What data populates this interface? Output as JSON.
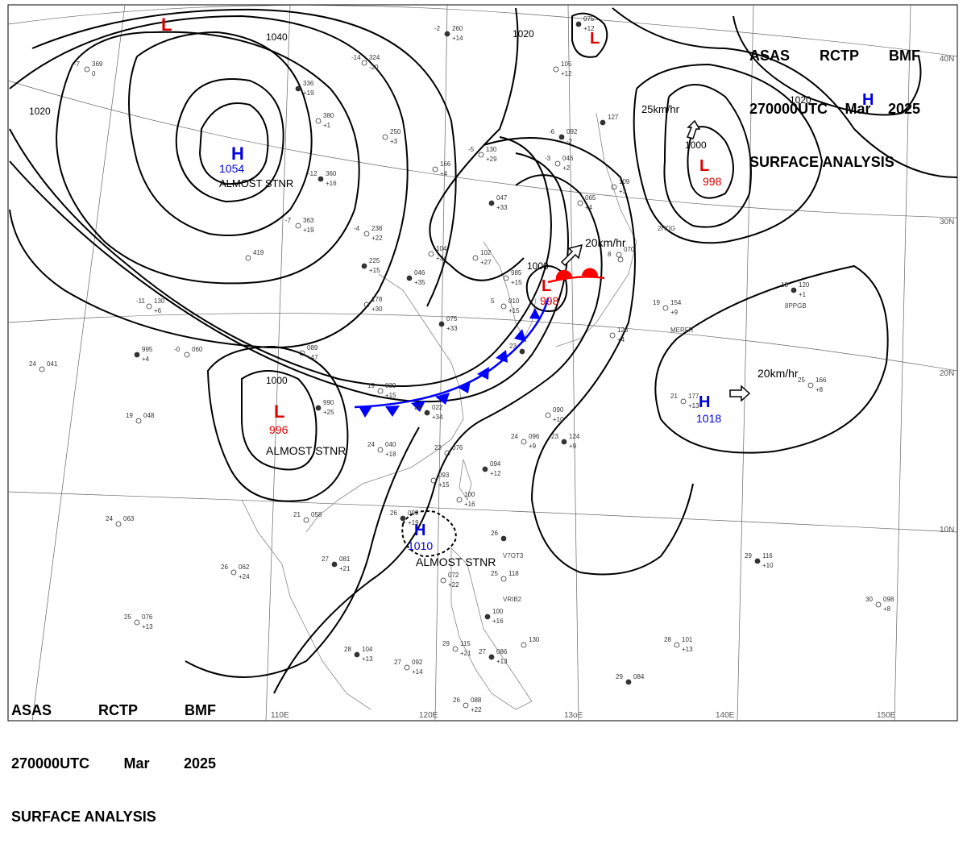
{
  "title": {
    "top": {
      "line1": [
        "ASAS",
        "RCTP",
        "BMF"
      ],
      "line2": [
        "270000UTC",
        "Mar",
        "2025"
      ],
      "line3": "SURFACE ANALYSIS"
    },
    "bottom": {
      "line1": [
        "ASAS",
        "RCTP",
        "BMF"
      ],
      "line2": [
        "270000UTC",
        "Mar",
        "2025"
      ],
      "line3": "SURFACE ANALYSIS"
    }
  },
  "colors": {
    "high": "#0000dd",
    "low": "#dd0000",
    "cold_front": "#0000ff",
    "warm_front": "#ff0000",
    "isobar": "#000000",
    "grid": "#555555",
    "coast": "#777777"
  },
  "grid_labels": {
    "longitude": [
      "110E",
      "120E",
      "13oE",
      "140E",
      "150E"
    ],
    "latitude": [
      "40N",
      "30N",
      "20N",
      "10N"
    ]
  },
  "pressure_systems": [
    {
      "id": "low-topleft",
      "type": "L",
      "value": ""
    },
    {
      "id": "high-mongolia",
      "type": "H",
      "value": "1054",
      "note": "ALMOST STNR"
    },
    {
      "id": "low-farnorth",
      "type": "L",
      "value": ""
    },
    {
      "id": "high-pacific-north",
      "type": "H",
      "value": ""
    },
    {
      "id": "low-kuril",
      "type": "L",
      "value": "998",
      "motion": "25km/hr"
    },
    {
      "id": "low-korea",
      "type": "L",
      "value": "998",
      "motion": "20km/hr"
    },
    {
      "id": "low-sichuan",
      "type": "L",
      "value": "996",
      "note": "ALMOST STNR"
    },
    {
      "id": "high-pacific-east",
      "type": "H",
      "value": "1018",
      "motion": "20km/hr"
    },
    {
      "id": "high-scs",
      "type": "H",
      "value": "1010",
      "note": "ALMOST STNR"
    }
  ],
  "isobar_labels": [
    "1040",
    "1020",
    "1020",
    "1020",
    "1000",
    "1000",
    "1000"
  ],
  "station_plots": [
    {
      "a": "-2",
      "b": "260",
      "c": "+14"
    },
    {
      "a": "-14",
      "b": "324",
      "c": "-20"
    },
    {
      "a": "-7",
      "b": "369",
      "c": "0"
    },
    {
      "a": "",
      "b": "336",
      "c": "+19"
    },
    {
      "a": "",
      "b": "380",
      "c": "+1"
    },
    {
      "a": "",
      "b": "250",
      "c": "+3"
    },
    {
      "a": "-12",
      "b": "360",
      "c": "+16"
    },
    {
      "a": "-7",
      "b": "363",
      "c": "+19"
    },
    {
      "a": "-4",
      "b": "238",
      "c": "+22"
    },
    {
      "a": "",
      "b": "225",
      "c": "+15"
    },
    {
      "a": "-11",
      "b": "130",
      "c": "+6"
    },
    {
      "a": "-0",
      "b": "060",
      "c": ""
    },
    {
      "a": "",
      "b": "995",
      "c": "+4"
    },
    {
      "a": "24",
      "b": "041",
      "c": ""
    },
    {
      "a": "19",
      "b": "048",
      "c": ""
    },
    {
      "a": "",
      "b": "990",
      "c": "+25"
    },
    {
      "a": "",
      "b": "089",
      "c": "+47"
    },
    {
      "a": "19",
      "b": "039",
      "c": "+15"
    },
    {
      "a": "24",
      "b": "022",
      "c": "+34"
    },
    {
      "a": "24",
      "b": "040",
      "c": "+18"
    },
    {
      "a": "23",
      "b": "076",
      "c": ""
    },
    {
      "a": "",
      "b": "094",
      "c": "+12"
    },
    {
      "a": "",
      "b": "093",
      "c": "+15"
    },
    {
      "a": "",
      "b": "100",
      "c": "+16"
    },
    {
      "a": "26",
      "b": "099",
      "c": "+19"
    },
    {
      "a": "21",
      "b": "058",
      "c": ""
    },
    {
      "a": "24",
      "b": "063",
      "c": ""
    },
    {
      "a": "27",
      "b": "081",
      "c": "+21"
    },
    {
      "a": "26",
      "b": "062",
      "c": "+24"
    },
    {
      "a": "25",
      "b": "076",
      "c": "+13"
    },
    {
      "a": "28",
      "b": "104",
      "c": "+13"
    },
    {
      "a": "27",
      "b": "092",
      "c": "+14"
    },
    {
      "a": "29",
      "b": "115",
      "c": "+21"
    },
    {
      "a": "27",
      "b": "086",
      "c": "+13"
    },
    {
      "a": "",
      "b": "130",
      "c": ""
    },
    {
      "a": "26",
      "b": "088",
      "c": "+22"
    },
    {
      "a": "",
      "b": "100",
      "c": "+16"
    },
    {
      "a": "",
      "b": "072",
      "c": "+22"
    },
    {
      "a": "25",
      "b": "118",
      "c": ""
    },
    {
      "a": "26",
      "b": "",
      "c": ""
    },
    {
      "a": "",
      "b": "090",
      "c": "+10"
    },
    {
      "a": "24",
      "b": "096",
      "c": "+9"
    },
    {
      "a": "23",
      "b": "124",
      "c": "+9"
    },
    {
      "a": "",
      "b": "126",
      "c": "+4"
    },
    {
      "a": "19",
      "b": "154",
      "c": "+9"
    },
    {
      "a": "18",
      "b": "120",
      "c": "+1"
    },
    {
      "a": "21",
      "b": "177",
      "c": "+13"
    },
    {
      "a": "25",
      "b": "166",
      "c": "+8"
    },
    {
      "a": "29",
      "b": "116",
      "c": "+10"
    },
    {
      "a": "30",
      "b": "098",
      "c": "+8"
    },
    {
      "a": "28",
      "b": "101",
      "c": "+13"
    },
    {
      "a": "29",
      "b": "084",
      "c": ""
    },
    {
      "a": "",
      "b": "985",
      "c": "+15"
    },
    {
      "a": "5",
      "b": "010",
      "c": "+15"
    },
    {
      "a": "",
      "b": "075",
      "c": "+33"
    },
    {
      "a": "",
      "b": "102",
      "c": "+27"
    },
    {
      "a": "",
      "b": "104",
      "c": "+34"
    },
    {
      "a": "",
      "b": "046",
      "c": "+35"
    },
    {
      "a": "",
      "b": "178",
      "c": "+30"
    },
    {
      "a": "",
      "b": "419",
      "c": ""
    },
    {
      "a": "",
      "b": "047",
      "c": "+33"
    },
    {
      "a": "-5",
      "b": "130",
      "c": "+29"
    },
    {
      "a": "",
      "b": "166",
      "c": "+4"
    },
    {
      "a": "-6",
      "b": "092",
      "c": "-2"
    },
    {
      "a": "-3",
      "b": "046",
      "c": "+2"
    },
    {
      "a": "",
      "b": "065",
      "c": "+4"
    },
    {
      "a": "",
      "b": "127",
      "c": ""
    },
    {
      "a": "",
      "b": "109",
      "c": "+3"
    },
    {
      "a": "",
      "b": "070",
      "c": ""
    },
    {
      "a": "",
      "b": "075",
      "c": "+12"
    },
    {
      "a": "",
      "b": "105",
      "c": "+12"
    },
    {
      "a": "8",
      "b": "",
      "c": ""
    },
    {
      "a": "23",
      "b": "",
      "c": ""
    }
  ],
  "ship_ids": [
    "2HDG",
    "MERFR",
    "8PPGB",
    "V7OT3",
    "VRIB2"
  ]
}
